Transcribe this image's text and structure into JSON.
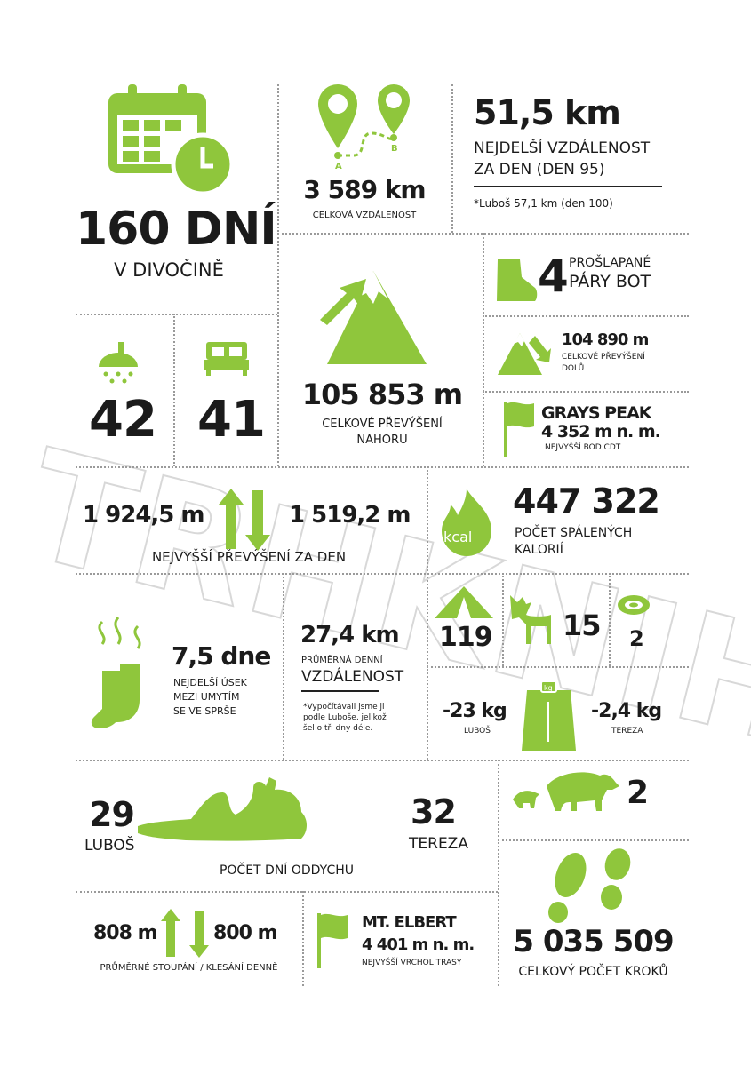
{
  "colors": {
    "accent": "#8fc63c",
    "text": "#1b1b1b"
  },
  "days": {
    "value": "160 DNÍ",
    "label": "V DIVOČINĚ",
    "icon": "calendar-clock-icon"
  },
  "distance": {
    "value": "3 589 km",
    "label": "CELKOVÁ VZDÁLENOST",
    "pin_a": "A",
    "pin_b": "B"
  },
  "longest_day": {
    "value": "51,5 km",
    "label1": "NEJDELŠÍ VZDÁLENOST",
    "label2": "ZA DEN (DEN 95)",
    "note": "*Luboš 57,1 km (den 100)"
  },
  "shower": {
    "value": "42",
    "icon": "shower-icon"
  },
  "bed": {
    "value": "41",
    "icon": "bed-icon"
  },
  "ascent": {
    "value": "105 853 m",
    "label1": "CELKOVÉ PŘEVÝŠENÍ",
    "label2": "NAHORU"
  },
  "boots": {
    "value": "4",
    "label1": "PROŠLAPANÉ",
    "label2": "PÁRY BOT"
  },
  "descent": {
    "value": "104 890 m",
    "label1": "CELKOVÉ PŘEVÝŠENÍ",
    "label2": "DOLŮ"
  },
  "grays": {
    "name": "GRAYS PEAK",
    "height": "4 352 m n. m.",
    "label": "NEJVYŠŠÍ BOD CDT"
  },
  "max_day": {
    "up": "1 924,5 m",
    "down": "1 519,2 m",
    "label": "NEJVYŠŠÍ PŘEVÝŠENÍ ZA DEN"
  },
  "calories": {
    "value": "447 322",
    "label1": "POČET SPÁLENÝCH",
    "label2": "KALORIÍ",
    "icon_text": "kcal"
  },
  "socks": {
    "value": "7,5 dne",
    "label1": "NEJDELŠÍ ÚSEK",
    "label2": "MEZI UMYTÍM",
    "label3": "SE VE SPRŠE"
  },
  "avg_dist": {
    "value": "27,4 km",
    "label1": "PRŮMĚRNÁ DENNÍ",
    "label2": "VZDÁLENOST",
    "note1": "*Vypočítávali jsme ji",
    "note2": "podle Luboše, jelikož",
    "note3": "šel o tři dny déle."
  },
  "tent": {
    "value": "119"
  },
  "moose": {
    "value": "15"
  },
  "snake": {
    "value": "2"
  },
  "weight": {
    "luboš": "-23 kg",
    "luboš_label": "LUBOŠ",
    "tereza": "-2,4 kg",
    "tereza_label": "TEREZA",
    "icon_text": "kg"
  },
  "bears": {
    "value": "2"
  },
  "rest": {
    "luboš": "29",
    "luboš_label": "LUBOŠ",
    "tereza": "32",
    "tereza_label": "TEREZA",
    "label": "POČET DNÍ ODDYCHU"
  },
  "steps": {
    "value": "5 035 509",
    "label": "CELKOVÝ POČET KROKŮ"
  },
  "avg_climb": {
    "up": "808 m",
    "down": "800 m",
    "label": "PRŮMĚRNÉ STOUPÁNÍ / KLESÁNÍ DENNĚ"
  },
  "elbert": {
    "name": "MT. ELBERT",
    "height": "4 401 m n. m.",
    "label": "NEJVYŠŠÍ VRCHOL TRASY"
  },
  "watermark": "TRHKNIH"
}
